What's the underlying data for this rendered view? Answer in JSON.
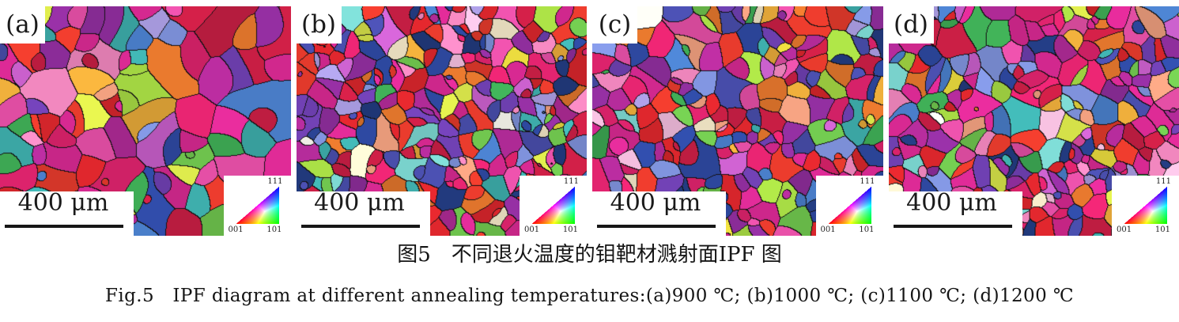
{
  "figure": {
    "panels": [
      {
        "label": "(a)"
      },
      {
        "label": "(b)"
      },
      {
        "label": "(c)"
      },
      {
        "label": "(d)"
      }
    ],
    "scale_bar": {
      "label": "400 μm"
    },
    "ipf_legend": {
      "label_001": "001",
      "label_101": "101",
      "label_111": "111",
      "color_001": "#ff0000",
      "color_101": "#00cc00",
      "color_111": "#2222dd"
    },
    "caption_cn": "图5　不同退火温度的钼靶材溅射面IPF 图",
    "caption_en": "Fig.5　IPF diagram at different annealing temperatures:(a)900 ℃; (b)1000 ℃; (c)1100 ℃; (d)1200 ℃"
  }
}
